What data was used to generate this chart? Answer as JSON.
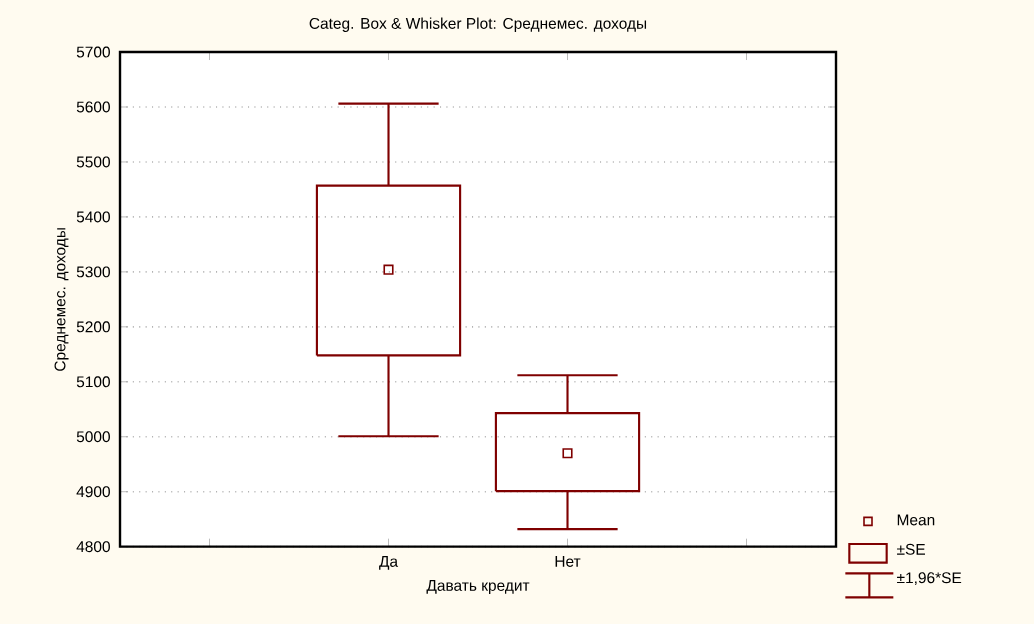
{
  "chart_data": {
    "type": "box",
    "title": "Categ. Box & Whisker Plot: Среднемес. доходы",
    "xlabel": "Давать кредит",
    "ylabel": "Среднемес. доходы",
    "categories": [
      "Да",
      "Нет"
    ],
    "boxes": [
      {
        "low": 5001,
        "q1": 5148,
        "median": 5304,
        "q3": 5457,
        "high": 5606
      },
      {
        "low": 4832,
        "q1": 4901,
        "median": 4970,
        "q3": 5043,
        "high": 5112
      }
    ],
    "color": "#7f0000",
    "ylim": [
      4800,
      5700
    ],
    "yticks": [
      4800,
      4900,
      5000,
      5100,
      5200,
      5300,
      5400,
      5500,
      5600,
      5700
    ],
    "grid": "y",
    "annotations": [
      "Mean",
      "±SE",
      "±1,96*SE"
    ]
  }
}
